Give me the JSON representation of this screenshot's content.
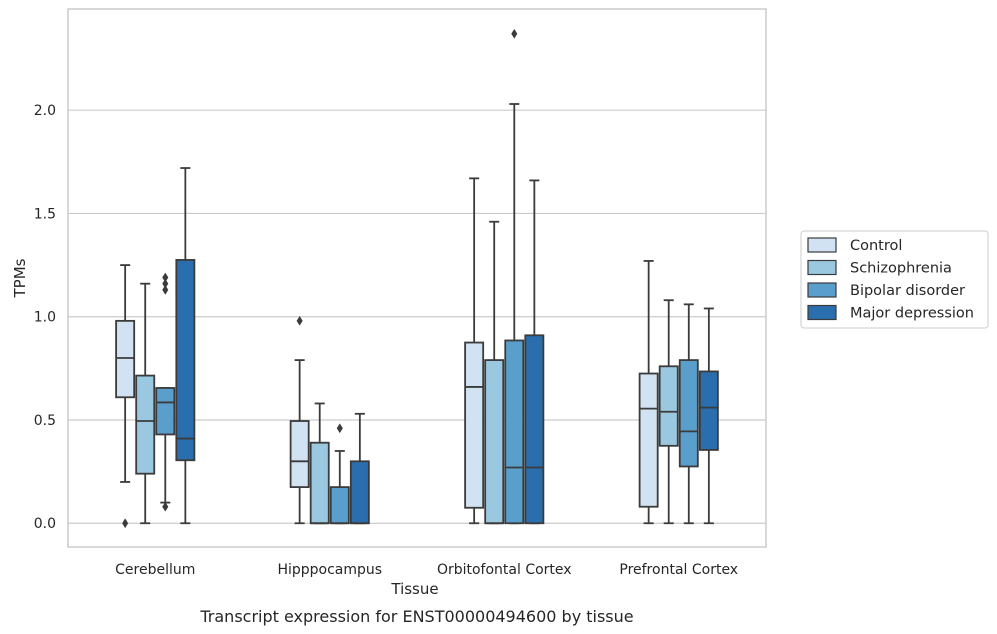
{
  "caption": "Transcript expression for ENST00000494600 by tissue",
  "chart_data": {
    "type": "box",
    "xlabel": "Tissue",
    "ylabel": "TPMs",
    "ylim": [
      -0.115,
      2.49
    ],
    "yticks": [
      0.0,
      0.5,
      1.0,
      1.5,
      2.0
    ],
    "ytick_labels": [
      "0.0",
      "0.5",
      "1.0",
      "1.5",
      "2.0"
    ],
    "grid": "horizontal",
    "legend_position": "right",
    "categories": [
      "Cerebellum",
      "Hipppocampus",
      "Orbitofontal Cortex",
      "Prefrontal Cortex"
    ],
    "series": [
      {
        "name": "Control",
        "color": "#d1e2f2",
        "boxes": [
          {
            "whislo": 0.2,
            "q1": 0.61,
            "med": 0.8,
            "q3": 0.98,
            "whishi": 1.25,
            "fliers": [
              0.0
            ]
          },
          {
            "whislo": 0.0,
            "q1": 0.175,
            "med": 0.3,
            "q3": 0.495,
            "whishi": 0.79,
            "fliers": [
              0.98
            ]
          },
          {
            "whislo": 0.0,
            "q1": 0.075,
            "med": 0.66,
            "q3": 0.875,
            "whishi": 1.67,
            "fliers": []
          },
          {
            "whislo": 0.0,
            "q1": 0.08,
            "med": 0.555,
            "q3": 0.725,
            "whishi": 1.27,
            "fliers": []
          }
        ]
      },
      {
        "name": "Schizophrenia",
        "color": "#9ac8e0",
        "boxes": [
          {
            "whislo": 0.0,
            "q1": 0.24,
            "med": 0.495,
            "q3": 0.715,
            "whishi": 1.16,
            "fliers": []
          },
          {
            "whislo": 0.0,
            "q1": 0.0,
            "med": 0.0,
            "q3": 0.39,
            "whishi": 0.58,
            "fliers": []
          },
          {
            "whislo": 0.0,
            "q1": 0.0,
            "med": 0.0,
            "q3": 0.79,
            "whishi": 1.46,
            "fliers": []
          },
          {
            "whislo": 0.0,
            "q1": 0.375,
            "med": 0.54,
            "q3": 0.76,
            "whishi": 1.08,
            "fliers": []
          }
        ]
      },
      {
        "name": "Bipolar disorder",
        "color": "#5a9fcc",
        "boxes": [
          {
            "whislo": 0.1,
            "q1": 0.43,
            "med": 0.585,
            "q3": 0.655,
            "whishi": 0.655,
            "fliers": [
              0.08,
              1.13,
              1.16,
              1.19
            ]
          },
          {
            "whislo": 0.0,
            "q1": 0.0,
            "med": 0.0,
            "q3": 0.175,
            "whishi": 0.35,
            "fliers": [
              0.46
            ]
          },
          {
            "whislo": 0.0,
            "q1": 0.0,
            "med": 0.27,
            "q3": 0.885,
            "whishi": 2.03,
            "fliers": [
              2.37
            ]
          },
          {
            "whislo": 0.0,
            "q1": 0.275,
            "med": 0.445,
            "q3": 0.79,
            "whishi": 1.06,
            "fliers": []
          }
        ]
      },
      {
        "name": "Major depression",
        "color": "#2b6ead",
        "boxes": [
          {
            "whislo": 0.0,
            "q1": 0.305,
            "med": 0.41,
            "q3": 1.275,
            "whishi": 1.72,
            "fliers": []
          },
          {
            "whislo": 0.0,
            "q1": 0.0,
            "med": 0.0,
            "q3": 0.3,
            "whishi": 0.53,
            "fliers": []
          },
          {
            "whislo": 0.0,
            "q1": 0.0,
            "med": 0.27,
            "q3": 0.91,
            "whishi": 1.66,
            "fliers": []
          },
          {
            "whislo": 0.0,
            "q1": 0.355,
            "med": 0.56,
            "q3": 0.735,
            "whishi": 1.04,
            "fliers": []
          }
        ]
      }
    ]
  }
}
